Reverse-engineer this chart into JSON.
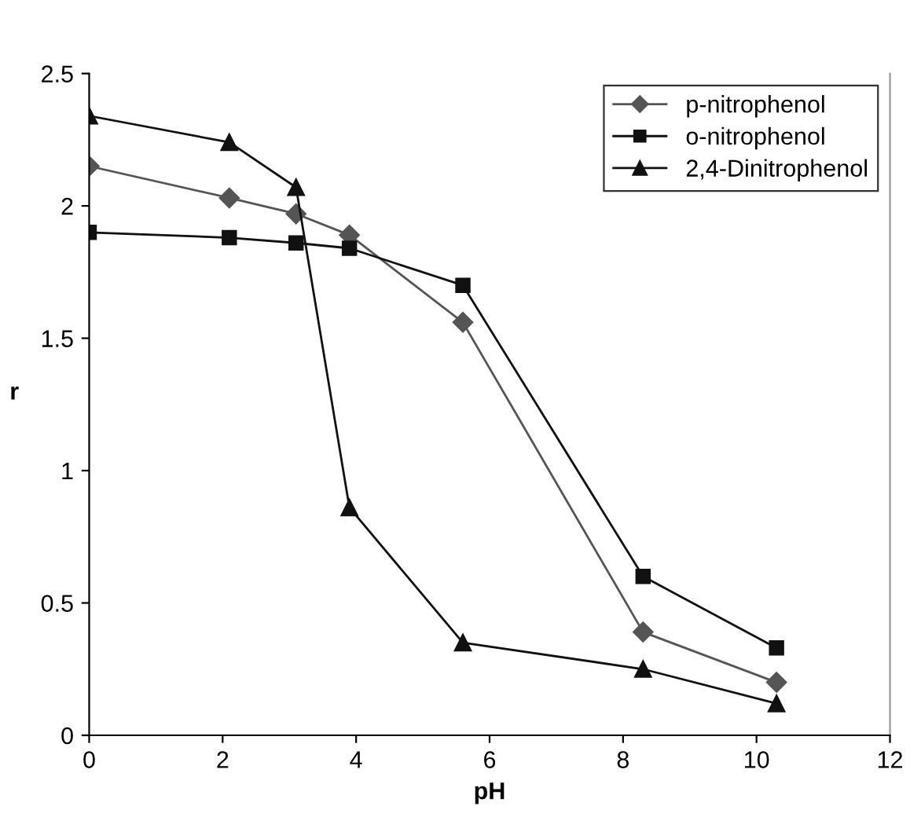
{
  "chart_data": {
    "type": "line",
    "xlabel": "pH",
    "ylabel": "r",
    "x": [
      0,
      2.1,
      3.1,
      3.9,
      5.6,
      8.3,
      10.3
    ],
    "series": [
      {
        "name": "p-nitrophenol",
        "color": "#555555",
        "marker": "diamond",
        "values": [
          2.15,
          2.03,
          1.97,
          1.89,
          1.56,
          0.39,
          0.2
        ]
      },
      {
        "name": "o-nitrophenol",
        "color": "#111111",
        "marker": "square",
        "values": [
          1.9,
          1.88,
          1.86,
          1.84,
          1.7,
          0.6,
          0.33
        ]
      },
      {
        "name": "2,4-Dinitrophenol",
        "color": "#111111",
        "marker": "triangle",
        "values": [
          2.34,
          2.24,
          2.07,
          0.86,
          0.35,
          0.25,
          0.12
        ]
      }
    ],
    "xlim": [
      0,
      12
    ],
    "xticks": [
      0,
      2,
      4,
      6,
      8,
      10,
      12
    ],
    "ylim": [
      0,
      2.5
    ],
    "yticks": [
      0,
      0.5,
      1,
      1.5,
      2,
      2.5
    ],
    "grid": false,
    "legend": "top right",
    "line_style": "solid"
  }
}
